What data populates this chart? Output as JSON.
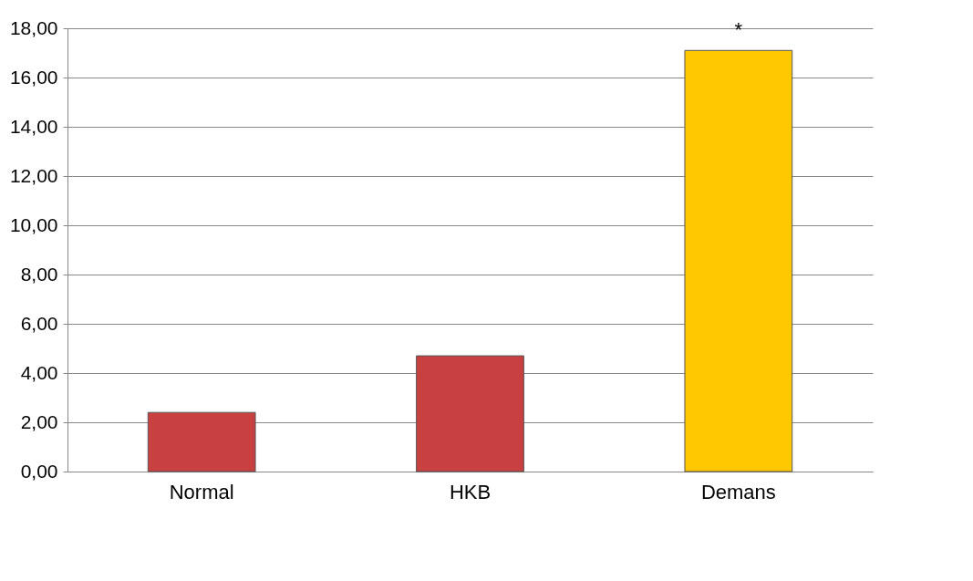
{
  "chart_data": {
    "type": "bar",
    "categories": [
      "Normal",
      "HKB",
      "Demans"
    ],
    "values": [
      2.4,
      4.7,
      17.1
    ],
    "colors": [
      "#c84040",
      "#c84040",
      "#ffc800"
    ],
    "ylim": [
      0,
      18
    ],
    "yticks": [
      {
        "value": 0,
        "label": "0,00"
      },
      {
        "value": 2,
        "label": "2,00"
      },
      {
        "value": 4,
        "label": "4,00"
      },
      {
        "value": 6,
        "label": "6,00"
      },
      {
        "value": 8,
        "label": "8,00"
      },
      {
        "value": 10,
        "label": "10,00"
      },
      {
        "value": 12,
        "label": "12,00"
      },
      {
        "value": 14,
        "label": "14,00"
      },
      {
        "value": 16,
        "label": "16,00"
      },
      {
        "value": 18,
        "label": "18,00"
      }
    ],
    "grid": "y",
    "annotations": [
      {
        "text": "*",
        "x": "Demans",
        "y": 17.1
      }
    ]
  }
}
